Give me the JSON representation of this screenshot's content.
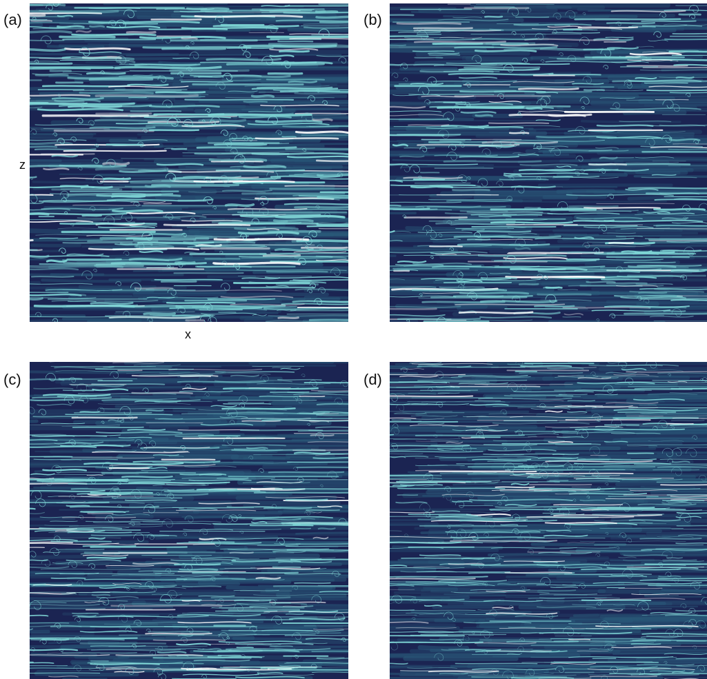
{
  "figure": {
    "panels": [
      {
        "id": "a",
        "label": "(a)"
      },
      {
        "id": "b",
        "label": "(b)"
      },
      {
        "id": "c",
        "label": "(c)"
      },
      {
        "id": "d",
        "label": "(d)"
      }
    ],
    "axes": {
      "z_label": "z",
      "x_label": "x"
    },
    "colors": {
      "background": "#1b2452",
      "mid": "#2a5a7a",
      "bright": "#7fd6d6",
      "peak": "#ffffff"
    }
  }
}
